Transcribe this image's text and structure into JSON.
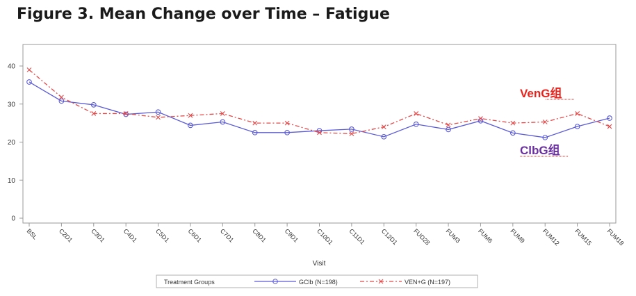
{
  "page": {
    "title": "Figure 3. Mean Change over Time – Fatigue"
  },
  "chart_data": {
    "type": "line",
    "title": "Figure 3. Mean Change over Time – Fatigue",
    "xlabel": "Visit",
    "ylabel": "",
    "ylim": [
      0,
      45
    ],
    "yticks": [
      0,
      10,
      20,
      30,
      40
    ],
    "grid": false,
    "categories": [
      "BSL",
      "C2D1",
      "C3D1",
      "C4D1",
      "C5D1",
      "C6D1",
      "C7D1",
      "C8D1",
      "C9D1",
      "C10D1",
      "C11D1",
      "C12D1",
      "FUD28",
      "FUM3",
      "FUM6",
      "FUM9",
      "FUM12",
      "FUM15",
      "FUM18"
    ],
    "series": [
      {
        "name": "GClb (N=198)",
        "color": "#5b5bd6",
        "marker": "circle",
        "line_style": "solid",
        "values": [
          35.8,
          30.8,
          29.8,
          27.3,
          27.9,
          24.4,
          25.3,
          22.5,
          22.5,
          23.0,
          23.4,
          21.4,
          24.7,
          23.3,
          25.6,
          22.4,
          21.2,
          24.1,
          26.3
        ]
      },
      {
        "name": "VEN+G (N=197)",
        "color": "#e24a4a",
        "marker": "x",
        "line_style": "dashdot",
        "values": [
          39.0,
          31.8,
          27.5,
          27.5,
          26.5,
          27.0,
          27.5,
          25.0,
          25.0,
          22.5,
          22.2,
          24.0,
          27.5,
          24.5,
          26.2,
          25.0,
          25.3,
          27.5,
          24.1
        ]
      }
    ],
    "legend": {
      "title": "Treatment Groups",
      "position": "bottom-center"
    },
    "annotations": [
      {
        "text": "VenG组",
        "color": "#e8231d"
      },
      {
        "text": "ClbG组",
        "color": "#6a2fa0"
      }
    ]
  }
}
